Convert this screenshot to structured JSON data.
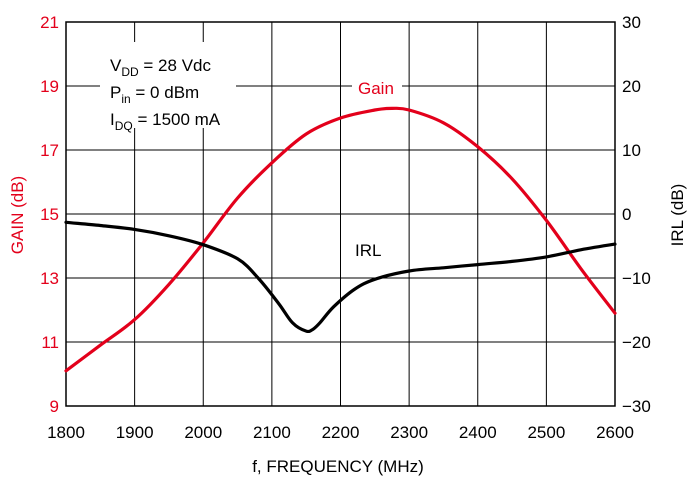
{
  "colors": {
    "gain": "#e3001b",
    "irl": "#000000",
    "grid": "#000000"
  },
  "chart_data": {
    "type": "line",
    "title": "",
    "xlabel": "f, FREQUENCY (MHz)",
    "ylabel_left": "GAIN (dB)",
    "ylabel_right": "IRL (dB)",
    "x_ticks": [
      "1800",
      "1900",
      "2000",
      "2100",
      "2200",
      "2300",
      "2400",
      "2500",
      "2600"
    ],
    "y_left_ticks": [
      "9",
      "11",
      "13",
      "15",
      "17",
      "19",
      "21"
    ],
    "y_right_ticks": [
      "−30",
      "−20",
      "−10",
      "0",
      "10",
      "20",
      "30"
    ],
    "xlim": [
      1800,
      2600
    ],
    "ylim_left": [
      9,
      21
    ],
    "ylim_right": [
      -30,
      30
    ],
    "grid": true,
    "conditions": {
      "vdd": {
        "main": "V",
        "sub": "DD",
        "rest": " = 28 Vdc"
      },
      "pin": {
        "main": "P",
        "sub": "in",
        "rest": " = 0 dBm"
      },
      "idq": {
        "main": "I",
        "sub": "DQ",
        "rest": " = 1500 mA"
      }
    },
    "series": [
      {
        "name": "Gain",
        "axis": "left",
        "x": [
          1800,
          1850,
          1900,
          1950,
          2000,
          2050,
          2100,
          2150,
          2200,
          2250,
          2275,
          2300,
          2350,
          2400,
          2450,
          2500,
          2550,
          2600
        ],
        "y": [
          10.1,
          10.9,
          11.7,
          12.8,
          14.1,
          15.5,
          16.6,
          17.5,
          18.0,
          18.25,
          18.3,
          18.25,
          17.85,
          17.1,
          16.1,
          14.8,
          13.3,
          11.9
        ]
      },
      {
        "name": "IRL",
        "axis": "right",
        "x": [
          1800,
          1850,
          1900,
          1950,
          2000,
          2050,
          2080,
          2110,
          2130,
          2150,
          2160,
          2170,
          2190,
          2220,
          2250,
          2300,
          2350,
          2400,
          2450,
          2500,
          2550,
          2600
        ],
        "y": [
          -1.3,
          -1.8,
          -2.4,
          -3.4,
          -4.8,
          -7.0,
          -10.0,
          -14.0,
          -17.0,
          -18.3,
          -18.0,
          -17.0,
          -14.5,
          -11.8,
          -10.2,
          -8.9,
          -8.4,
          -7.9,
          -7.4,
          -6.7,
          -5.6,
          -4.7
        ]
      }
    ]
  }
}
